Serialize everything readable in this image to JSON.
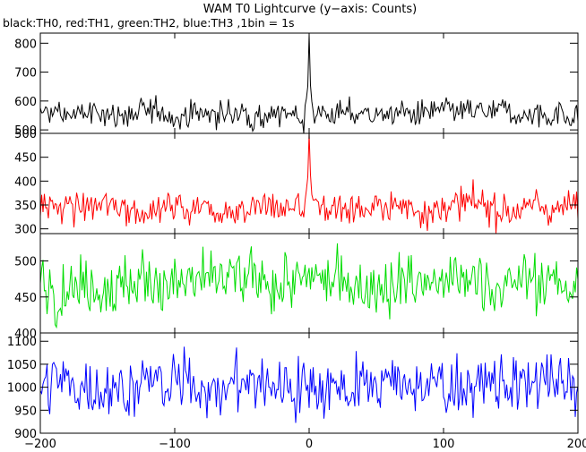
{
  "chart_data": {
    "type": "line",
    "title": "WAM T0 Lightcurve (y−axis: Counts)",
    "subtitle": "black:TH0, red:TH1, green:TH2, blue:TH3 ,1bin = 1s",
    "xlim": [
      -200,
      200
    ],
    "x_ticks": [
      "−200",
      "−100",
      "0",
      "100",
      "200"
    ],
    "x_tick_values": [
      -200,
      -100,
      0,
      100,
      200
    ],
    "grid": false,
    "panels": [
      {
        "series": "TH0",
        "color": "#000000",
        "ylim": [
          488,
          835
        ],
        "y_ticks": [
          500,
          600,
          700,
          800
        ],
        "baseline": 555,
        "noise": 22,
        "slow": 12,
        "peak": {
          "x": 0,
          "y": 830
        }
      },
      {
        "series": "TH1",
        "color": "#ff0000",
        "ylim": [
          290,
          500
        ],
        "y_ticks": [
          300,
          350,
          400,
          450,
          500
        ],
        "baseline": 345,
        "noise": 17,
        "slow": 8,
        "peak": {
          "x": 0,
          "y": 500
        }
      },
      {
        "series": "TH2",
        "color": "#00dd00",
        "ylim": [
          400,
          538
        ],
        "y_ticks": [
          400,
          450,
          500
        ],
        "baseline": 470,
        "noise": 20,
        "slow": 8,
        "peak": null
      },
      {
        "series": "TH3",
        "color": "#0000ff",
        "ylim": [
          900,
          1118
        ],
        "y_ticks": [
          900,
          950,
          1000,
          1050,
          1100
        ],
        "baseline": 1005,
        "noise": 32,
        "slow": 12,
        "peak": null
      }
    ]
  }
}
